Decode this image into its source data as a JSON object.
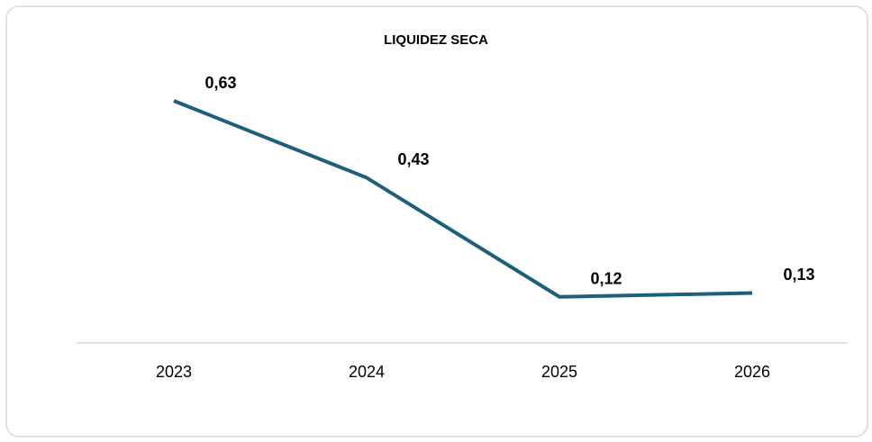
{
  "chart_data": {
    "type": "line",
    "title": "LIQUIDEZ SECA",
    "categories": [
      "2023",
      "2024",
      "2025",
      "2026"
    ],
    "series": [
      {
        "name": "Liquidez seca",
        "color": "#1f5f7e",
        "values": [
          0.63,
          0.43,
          0.12,
          0.13
        ],
        "value_labels": [
          "0,63",
          "0,43",
          "0,12",
          "0,13"
        ]
      }
    ]
  }
}
